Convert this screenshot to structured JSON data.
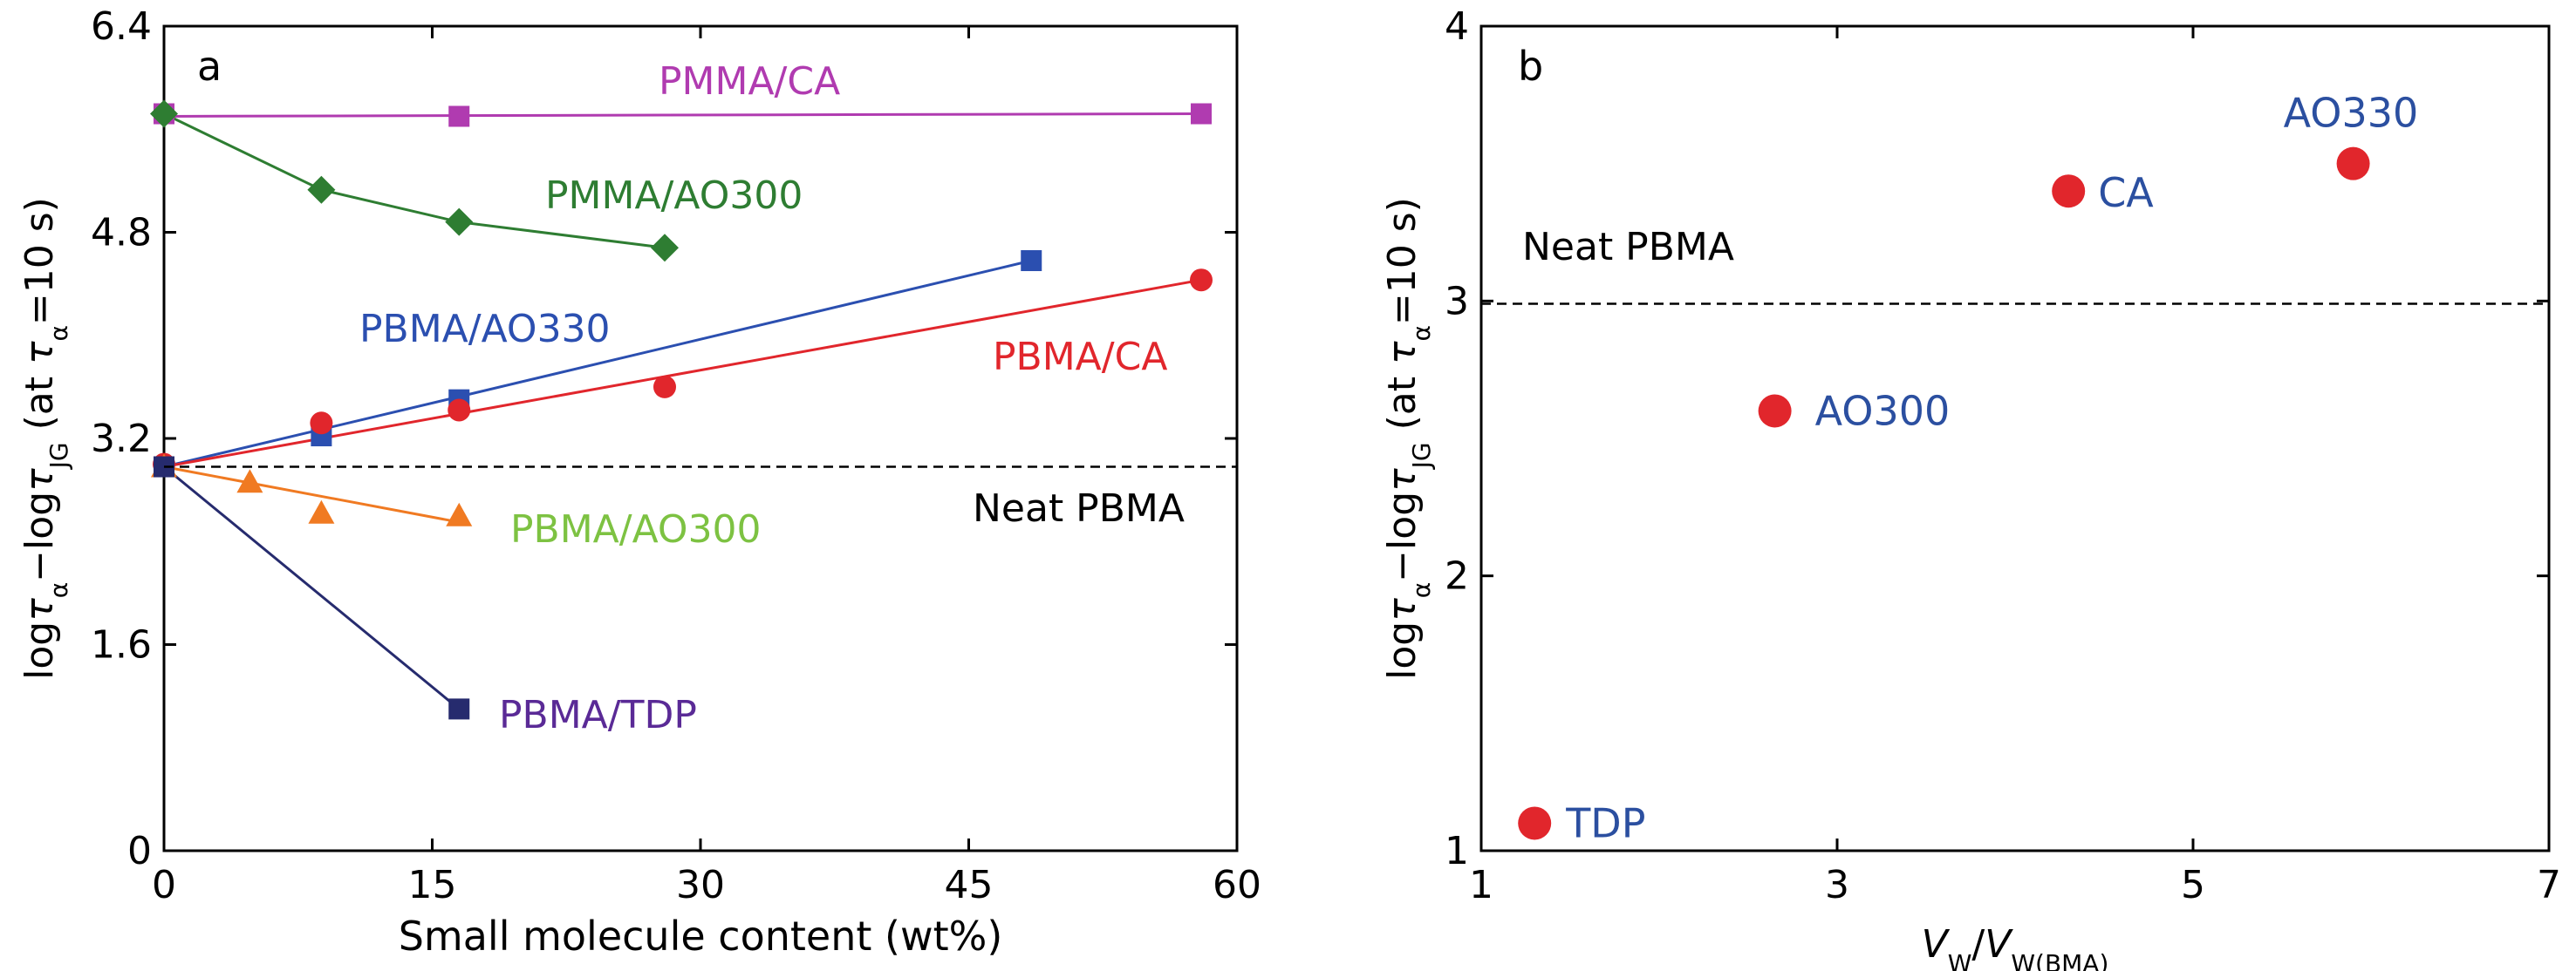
{
  "chart_data": [
    {
      "panel_label": "a",
      "type": "line",
      "xlabel": "Small molecule content (wt%)",
      "ylabel_parts": [
        "log",
        "τ",
        "α",
        "−log",
        "τ",
        "JG",
        " (at ",
        "τ",
        "α",
        "=10 s)"
      ],
      "xlim": [
        0,
        60
      ],
      "ylim": [
        0,
        6.4
      ],
      "xticks": [
        0,
        15,
        30,
        45,
        60
      ],
      "xtick_labels": [
        "0",
        "15",
        "30",
        "45",
        "60"
      ],
      "yticks": [
        0,
        1.6,
        3.2,
        4.8,
        6.4
      ],
      "ytick_labels": [
        "0",
        "1.6",
        "3.2",
        "4.8",
        "6.4"
      ],
      "reference_line": {
        "label": "Neat PBMA",
        "y": 2.98
      },
      "series": [
        {
          "name": "PMMA/CA",
          "color": "#b03bb0",
          "marker": "square",
          "x": [
            0,
            16.5,
            58
          ],
          "y": [
            5.72,
            5.7,
            5.72
          ],
          "fit_x": [
            0,
            58
          ],
          "fit_y": [
            5.7,
            5.72
          ]
        },
        {
          "name": "PMMA/AO300",
          "color": "#2e7d32",
          "marker": "diamond",
          "x": [
            0,
            8.8,
            16.5,
            28
          ],
          "y": [
            5.72,
            5.13,
            4.88,
            4.68
          ],
          "fit_x": [
            0,
            8.8,
            16.5,
            28
          ],
          "fit_y": [
            5.72,
            5.13,
            4.88,
            4.68
          ]
        },
        {
          "name": "PBMA/AO330",
          "color": "#2b4fb0",
          "marker": "square",
          "x": [
            0,
            8.8,
            16.5,
            48.5
          ],
          "y": [
            2.98,
            3.22,
            3.5,
            4.58
          ],
          "fit_x": [
            0,
            48.5
          ],
          "fit_y": [
            2.98,
            4.58
          ]
        },
        {
          "name": "PBMA/CA",
          "color": "#e1262c",
          "marker": "circle",
          "x": [
            0,
            8.8,
            16.5,
            28,
            58
          ],
          "y": [
            3.0,
            3.32,
            3.42,
            3.6,
            4.43
          ],
          "fit_x": [
            0,
            58
          ],
          "fit_y": [
            2.98,
            4.43
          ]
        },
        {
          "name": "PBMA/AO300",
          "color": "#f07a22",
          "marker": "triangle",
          "x": [
            0,
            4.8,
            8.8,
            16.5
          ],
          "y": [
            2.98,
            2.86,
            2.62,
            2.6
          ],
          "fit_x": [
            0,
            16.5
          ],
          "fit_y": [
            2.98,
            2.55
          ]
        },
        {
          "name": "PBMA/TDP",
          "color": "#262b6e",
          "marker": "square",
          "x": [
            0,
            16.5
          ],
          "y": [
            2.98,
            1.1
          ],
          "fit_x": [
            0,
            16.5
          ],
          "fit_y": [
            2.98,
            1.1
          ]
        }
      ],
      "series_label_colors": {
        "PMMA/CA": "#b03bb0",
        "PMMA/AO300": "#2e7d32",
        "PBMA/AO330": "#2b4fb0",
        "PBMA/CA": "#e1262c",
        "PBMA/AO300": "#7dc242",
        "PBMA/TDP": "#5a2a96"
      }
    },
    {
      "panel_label": "b",
      "type": "scatter",
      "xlabel_parts": [
        "V",
        "W",
        "/",
        "V",
        "W(BMA)"
      ],
      "ylabel_parts": [
        "log",
        "τ",
        "α",
        "−log",
        "τ",
        "JG",
        " (at ",
        "τ",
        "α",
        "=10 s)"
      ],
      "xlim": [
        1,
        7
      ],
      "ylim": [
        1,
        4
      ],
      "xticks": [
        1,
        3,
        5,
        7
      ],
      "xtick_labels": [
        "1",
        "3",
        "5",
        "7"
      ],
      "yticks": [
        1,
        2,
        3,
        4
      ],
      "ytick_labels": [
        "1",
        "2",
        "3",
        "4"
      ],
      "reference_line": {
        "label": "Neat PBMA",
        "y": 2.99
      },
      "marker_color": "#e1262c",
      "label_color": "#2b4fa0",
      "points": [
        {
          "label": "TDP",
          "x": 1.3,
          "y": 1.1
        },
        {
          "label": "AO300",
          "x": 2.65,
          "y": 2.6
        },
        {
          "label": "CA",
          "x": 4.3,
          "y": 3.4
        },
        {
          "label": "AO330",
          "x": 5.9,
          "y": 3.5
        }
      ]
    }
  ]
}
